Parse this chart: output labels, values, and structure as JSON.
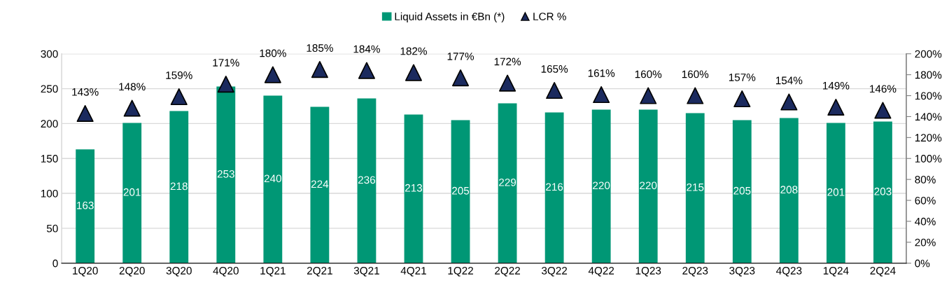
{
  "chart_data": {
    "type": "bar",
    "categories": [
      "1Q20",
      "2Q20",
      "3Q20",
      "4Q20",
      "1Q21",
      "2Q21",
      "3Q21",
      "4Q21",
      "1Q22",
      "2Q22",
      "3Q22",
      "4Q22",
      "1Q23",
      "2Q23",
      "3Q23",
      "4Q23",
      "1Q24",
      "2Q24"
    ],
    "series": [
      {
        "name": "Liquid Assets in €Bn (*)",
        "color": "#009775",
        "values": [
          163,
          201,
          218,
          253,
          240,
          224,
          236,
          213,
          205,
          229,
          216,
          220,
          220,
          215,
          205,
          208,
          201,
          203
        ],
        "value_labels": [
          "163",
          "201",
          "218",
          "253",
          "240",
          "224",
          "236",
          "213",
          "205",
          "229",
          "216",
          "220",
          "220",
          "215",
          "205",
          "208",
          "201",
          "203"
        ]
      },
      {
        "name": "LCR %",
        "type": "scatter",
        "axis": "y2",
        "marker": "triangle",
        "color": "#1b2a5e",
        "values": [
          143,
          148,
          159,
          171,
          180,
          185,
          184,
          182,
          177,
          172,
          165,
          161,
          160,
          160,
          157,
          154,
          149,
          146
        ],
        "value_labels": [
          "143%",
          "148%",
          "159%",
          "171%",
          "180%",
          "185%",
          "184%",
          "182%",
          "177%",
          "172%",
          "165%",
          "161%",
          "160%",
          "160%",
          "157%",
          "154%",
          "149%",
          "146%"
        ]
      }
    ],
    "ylim": [
      0,
      300
    ],
    "yticks": [
      0,
      50,
      100,
      150,
      200,
      250,
      300
    ],
    "y2lim": [
      0,
      200
    ],
    "y2ticks": [
      {
        "value": 0,
        "label": "0%"
      },
      {
        "value": 20,
        "label": "20%"
      },
      {
        "value": 40,
        "label": "40%"
      },
      {
        "value": 60,
        "label": "60%"
      },
      {
        "value": 80,
        "label": "80%"
      },
      {
        "value": 100,
        "label": "100%"
      },
      {
        "value": 120,
        "label": "120%"
      },
      {
        "value": 140,
        "label": "140%"
      },
      {
        "value": 160,
        "label": "160%"
      },
      {
        "value": 180,
        "label": "180%"
      },
      {
        "value": 200,
        "label": "200%"
      }
    ],
    "grid": "y",
    "legend": "top"
  }
}
